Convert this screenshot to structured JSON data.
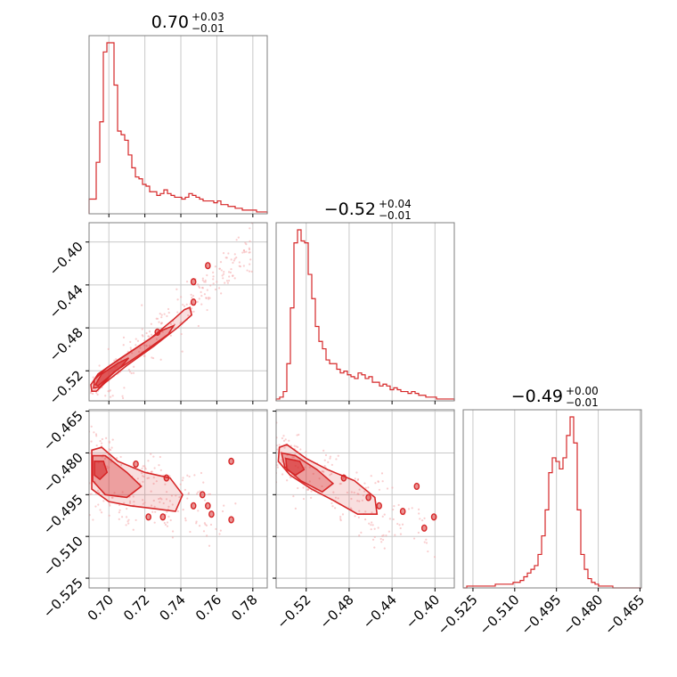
{
  "chart_data": {
    "type": "corner",
    "color": "#d62728",
    "parameters": [
      {
        "index": 0,
        "range": [
          0.689,
          0.788
        ],
        "ticks": [
          {
            "v": 0.7,
            "label": "0.70"
          },
          {
            "v": 0.72,
            "label": "0.72"
          },
          {
            "v": 0.74,
            "label": "0.74"
          },
          {
            "v": 0.76,
            "label": "0.76"
          },
          {
            "v": 0.78,
            "label": "0.78"
          }
        ],
        "title": {
          "median": "0.70",
          "plus": "+0.03",
          "minus": "−0.01"
        }
      },
      {
        "index": 1,
        "range": [
          -0.548,
          -0.382
        ],
        "ticks": [
          {
            "v": -0.52,
            "label": "−0.52"
          },
          {
            "v": -0.48,
            "label": "−0.48"
          },
          {
            "v": -0.44,
            "label": "−0.44"
          },
          {
            "v": -0.4,
            "label": "−0.40"
          }
        ],
        "title": {
          "median": "−0.52",
          "plus": "+0.04",
          "minus": "−0.01"
        }
      },
      {
        "index": 2,
        "range": [
          -0.5285,
          -0.4645
        ],
        "ticks": [
          {
            "v": -0.525,
            "label": "−0.525"
          },
          {
            "v": -0.51,
            "label": "−0.510"
          },
          {
            "v": -0.495,
            "label": "−0.495"
          },
          {
            "v": -0.48,
            "label": "−0.480"
          },
          {
            "v": -0.465,
            "label": "−0.465"
          }
        ],
        "title": {
          "median": "−0.49",
          "plus": "+0.00",
          "minus": "−0.01"
        }
      }
    ],
    "histograms": [
      {
        "param": 0,
        "bin_start": 0.689,
        "bin_width": 0.00198,
        "counts": [
          0.08,
          0.08,
          0.28,
          0.5,
          0.88,
          0.93,
          0.93,
          0.7,
          0.45,
          0.43,
          0.4,
          0.32,
          0.25,
          0.2,
          0.19,
          0.16,
          0.15,
          0.12,
          0.12,
          0.1,
          0.11,
          0.13,
          0.11,
          0.1,
          0.09,
          0.09,
          0.08,
          0.09,
          0.11,
          0.1,
          0.09,
          0.08,
          0.07,
          0.07,
          0.07,
          0.06,
          0.07,
          0.05,
          0.05,
          0.04,
          0.04,
          0.03,
          0.03,
          0.02,
          0.02,
          0.02,
          0.02,
          0.01,
          0.01,
          0.01
        ]
      },
      {
        "param": 1,
        "bin_start": -0.548,
        "bin_width": 0.00332,
        "counts": [
          0.01,
          0.02,
          0.05,
          0.2,
          0.5,
          0.85,
          0.92,
          0.86,
          0.85,
          0.68,
          0.55,
          0.4,
          0.32,
          0.28,
          0.22,
          0.2,
          0.2,
          0.17,
          0.15,
          0.16,
          0.14,
          0.13,
          0.12,
          0.15,
          0.14,
          0.12,
          0.13,
          0.1,
          0.1,
          0.08,
          0.09,
          0.08,
          0.06,
          0.07,
          0.06,
          0.05,
          0.05,
          0.04,
          0.05,
          0.04,
          0.03,
          0.03,
          0.02,
          0.02,
          0.02,
          0.01,
          0.01,
          0.01,
          0.01,
          0.01
        ]
      },
      {
        "param": 2,
        "bin_start": -0.5285,
        "bin_width": 0.00128,
        "counts": [
          0.0,
          0.01,
          0.01,
          0.01,
          0.01,
          0.01,
          0.01,
          0.01,
          0.01,
          0.02,
          0.02,
          0.02,
          0.02,
          0.02,
          0.03,
          0.03,
          0.04,
          0.06,
          0.08,
          0.1,
          0.12,
          0.18,
          0.28,
          0.42,
          0.62,
          0.7,
          0.68,
          0.64,
          0.7,
          0.82,
          0.92,
          0.78,
          0.42,
          0.18,
          0.1,
          0.05,
          0.03,
          0.02,
          0.01,
          0.01,
          0.01,
          0.01,
          0.0,
          0.0,
          0.0,
          0.0,
          0.0,
          0.0,
          0.0,
          0.0
        ]
      }
    ],
    "pairs": [
      {
        "x_param": 0,
        "y_param": 1,
        "trend": "positive linear: y = -0.532 + 1.5*(x - 0.696)",
        "levels": [
          {
            "points": [
              [
                0.6905,
                -0.539
              ],
              [
                0.69,
                -0.533
              ],
              [
                0.694,
                -0.523
              ],
              [
                0.705,
                -0.51
              ],
              [
                0.723,
                -0.49
              ],
              [
                0.736,
                -0.472
              ],
              [
                0.742,
                -0.463
              ],
              [
                0.745,
                -0.461
              ],
              [
                0.746,
                -0.468
              ],
              [
                0.738,
                -0.48
              ],
              [
                0.725,
                -0.497
              ],
              [
                0.71,
                -0.515
              ],
              [
                0.698,
                -0.531
              ],
              [
                0.693,
                -0.539
              ]
            ],
            "opacity": 0.15
          },
          {
            "points": [
              [
                0.6915,
                -0.536
              ],
              [
                0.692,
                -0.528
              ],
              [
                0.699,
                -0.517
              ],
              [
                0.715,
                -0.499
              ],
              [
                0.73,
                -0.482
              ],
              [
                0.736,
                -0.478
              ],
              [
                0.733,
                -0.486
              ],
              [
                0.718,
                -0.504
              ],
              [
                0.703,
                -0.521
              ],
              [
                0.695,
                -0.535
              ]
            ],
            "opacity": 0.35
          },
          {
            "points": [
              [
                0.6925,
                -0.533
              ],
              [
                0.696,
                -0.523
              ],
              [
                0.705,
                -0.513
              ],
              [
                0.711,
                -0.508
              ],
              [
                0.707,
                -0.516
              ],
              [
                0.699,
                -0.527
              ],
              [
                0.694,
                -0.534
              ]
            ],
            "opacity": 0.6
          }
        ],
        "islands": [
          [
            0.747,
            -0.437
          ],
          [
            0.755,
            -0.422
          ],
          [
            0.747,
            -0.456
          ],
          [
            0.727,
            -0.484
          ]
        ]
      },
      {
        "x_param": 0,
        "y_param": 2,
        "trend": "cluster near (0.695, -0.485), spreading right",
        "levels": [
          {
            "points": [
              [
                0.6905,
                -0.479
              ],
              [
                0.696,
                -0.478
              ],
              [
                0.705,
                -0.483
              ],
              [
                0.72,
                -0.487
              ],
              [
                0.734,
                -0.489
              ],
              [
                0.741,
                -0.495
              ],
              [
                0.737,
                -0.501
              ],
              [
                0.725,
                -0.5
              ],
              [
                0.712,
                -0.499
              ],
              [
                0.7,
                -0.4975
              ],
              [
                0.6905,
                -0.493
              ]
            ],
            "opacity": 0.15
          },
          {
            "points": [
              [
                0.691,
                -0.481
              ],
              [
                0.698,
                -0.481
              ],
              [
                0.71,
                -0.487
              ],
              [
                0.718,
                -0.492
              ],
              [
                0.71,
                -0.496
              ],
              [
                0.698,
                -0.495
              ],
              [
                0.691,
                -0.49
              ]
            ],
            "opacity": 0.35
          },
          {
            "points": [
              [
                0.692,
                -0.483
              ],
              [
                0.697,
                -0.483
              ],
              [
                0.699,
                -0.487
              ],
              [
                0.695,
                -0.4895
              ],
              [
                0.692,
                -0.488
              ]
            ],
            "opacity": 0.6
          }
        ],
        "islands": [
          [
            0.715,
            -0.484
          ],
          [
            0.732,
            -0.489
          ],
          [
            0.752,
            -0.495
          ],
          [
            0.747,
            -0.499
          ],
          [
            0.755,
            -0.499
          ],
          [
            0.768,
            -0.483
          ],
          [
            0.757,
            -0.502
          ],
          [
            0.768,
            -0.504
          ],
          [
            0.722,
            -0.503
          ],
          [
            0.73,
            -0.503
          ]
        ]
      },
      {
        "x_param": 1,
        "y_param": 2,
        "trend": "negative correlation: cluster near (-0.523, -0.484)",
        "levels": [
          {
            "points": [
              [
                -0.545,
                -0.478
              ],
              [
                -0.538,
                -0.477
              ],
              [
                -0.52,
                -0.482
              ],
              [
                -0.5,
                -0.486
              ],
              [
                -0.475,
                -0.49
              ],
              [
                -0.456,
                -0.496
              ],
              [
                -0.454,
                -0.502
              ],
              [
                -0.472,
                -0.502
              ],
              [
                -0.495,
                -0.497
              ],
              [
                -0.515,
                -0.493
              ],
              [
                -0.535,
                -0.488
              ],
              [
                -0.546,
                -0.483
              ]
            ],
            "opacity": 0.15
          },
          {
            "points": [
              [
                -0.543,
                -0.48
              ],
              [
                -0.53,
                -0.481
              ],
              [
                -0.51,
                -0.486
              ],
              [
                -0.495,
                -0.491
              ],
              [
                -0.505,
                -0.494
              ],
              [
                -0.525,
                -0.49
              ],
              [
                -0.54,
                -0.485
              ]
            ],
            "opacity": 0.35
          },
          {
            "points": [
              [
                -0.539,
                -0.482
              ],
              [
                -0.526,
                -0.483
              ],
              [
                -0.522,
                -0.486
              ],
              [
                -0.53,
                -0.488
              ],
              [
                -0.538,
                -0.486
              ]
            ],
            "opacity": 0.6
          }
        ],
        "islands": [
          [
            -0.485,
            -0.489
          ],
          [
            -0.462,
            -0.496
          ],
          [
            -0.452,
            -0.499
          ],
          [
            -0.417,
            -0.492
          ],
          [
            -0.43,
            -0.501
          ],
          [
            -0.401,
            -0.503
          ],
          [
            -0.41,
            -0.507
          ]
        ]
      }
    ]
  }
}
